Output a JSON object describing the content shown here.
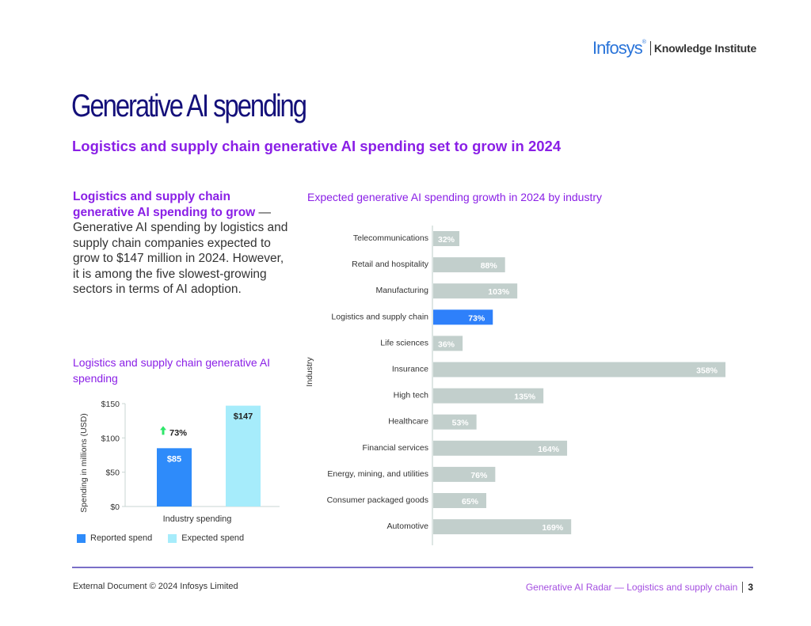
{
  "header": {
    "logo_brand": "Infosys",
    "logo_reg": "®",
    "logo_subtitle": "Knowledge Institute"
  },
  "page": {
    "title": "Generative AI spending",
    "subtitle": "Logistics and supply chain generative AI spending set to grow in 2024",
    "intro_lead": "Logistics and supply chain generative AI spending to grow",
    "intro_body": " — Generative AI spending by logistics and supply chain companies expected to grow to $147 million in 2024. However, it is among the five slowest-growing sectors in terms of AI adoption."
  },
  "colors": {
    "title": "#14107a",
    "accent_purple": "#8a1fe6",
    "reported": "#2e8bfa",
    "expected": "#a6ecfb",
    "highlight": "#2e80fa",
    "neutral_bar": "#c2cfcc",
    "growth_arrow": "#2ee66a"
  },
  "chart_data": [
    {
      "type": "bar",
      "title": "Logistics and supply chain  generative AI spending",
      "xlabel": "Industry spending",
      "ylabel": "Spending in millions (USD)",
      "categories": [
        "Industry spending"
      ],
      "series": [
        {
          "name": "Reported spend",
          "values": [
            85
          ],
          "label": "$85"
        },
        {
          "name": "Expected spend",
          "values": [
            147
          ],
          "label": "$147"
        }
      ],
      "yticks": [
        "$0",
        "$50",
        "$100",
        "$150"
      ],
      "ytick_values": [
        0,
        50,
        100,
        150
      ],
      "ylim": [
        0,
        150
      ],
      "annotation": {
        "text": "73%",
        "icon": "up-arrow-icon"
      },
      "legend": [
        "Reported spend",
        "Expected spend"
      ],
      "legend_position": "bottom",
      "grid": false
    },
    {
      "type": "bar",
      "orientation": "horizontal",
      "title": "Expected generative AI spending growth in 2024 by industry",
      "ylabel": "Industry",
      "xlabel": "",
      "categories": [
        "Telecommunications",
        "Retail and hospitality",
        "Manufacturing",
        "Logistics and supply chain",
        "Life sciences",
        "Insurance",
        "High tech",
        "Healthcare",
        "Financial services",
        "Energy, mining, and utilities",
        "Consumer packaged goods",
        "Automotive"
      ],
      "values": [
        32,
        88,
        103,
        73,
        36,
        358,
        135,
        53,
        164,
        76,
        65,
        169
      ],
      "labels": [
        "32%",
        "88%",
        "103%",
        "73%",
        "36%",
        "358%",
        "135%",
        "53%",
        "164%",
        "76%",
        "65%",
        "169%"
      ],
      "highlight": "Logistics and supply chain",
      "xlim": [
        0,
        358
      ],
      "unit": "%",
      "grid": false
    }
  ],
  "footer": {
    "left": "External Document © 2024 Infosys Limited",
    "right": "Generative AI Radar — Logistics and supply chain",
    "page_number": "3"
  }
}
